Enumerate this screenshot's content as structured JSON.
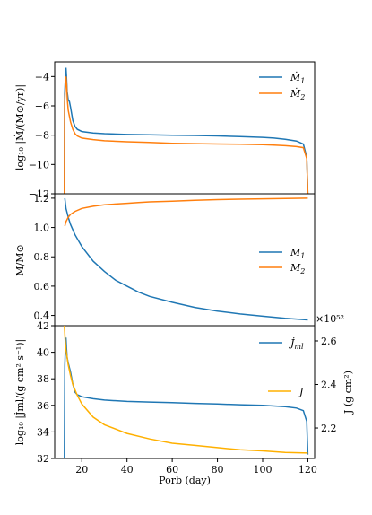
{
  "chart_data": [
    {
      "type": "line",
      "panel": "top",
      "ylabel": "log₁₀ |Ṁ/(M⊙/yr)|",
      "ylim": [
        -12,
        -3
      ],
      "yticks": [
        -4,
        -6,
        -8,
        -10,
        -12
      ],
      "ytick_labels": [
        "−4",
        "−6",
        "−8",
        "−10",
        "−12"
      ],
      "legend": "upper right",
      "series": [
        {
          "name": "Ṁ₁",
          "color": "#1f77b4",
          "x": [
            12.3,
            12.4,
            12.8,
            13.0,
            13.2,
            13.5,
            14,
            14.5,
            15,
            16,
            17,
            18,
            20,
            25,
            30,
            40,
            50,
            60,
            70,
            80,
            90,
            100,
            105,
            110,
            115,
            118,
            119.5,
            120
          ],
          "y": [
            -12,
            -5.2,
            -3.9,
            -3.4,
            -3.9,
            -5.0,
            -5.6,
            -5.7,
            -6.1,
            -7.0,
            -7.4,
            -7.6,
            -7.75,
            -7.85,
            -7.9,
            -7.95,
            -7.98,
            -8.0,
            -8.02,
            -8.05,
            -8.1,
            -8.15,
            -8.2,
            -8.28,
            -8.4,
            -8.6,
            -9.5,
            -12
          ]
        },
        {
          "name": "Ṁ₂",
          "color": "#ff7f0e",
          "x": [
            12.3,
            12.4,
            12.8,
            13.0,
            13.3,
            13.6,
            14,
            15,
            16,
            17,
            18,
            20,
            25,
            30,
            40,
            50,
            60,
            70,
            80,
            90,
            100,
            105,
            110,
            115,
            118,
            119.5,
            120
          ],
          "y": [
            -12,
            -5.8,
            -4.5,
            -4.0,
            -4.6,
            -5.6,
            -6.3,
            -7.1,
            -7.6,
            -7.9,
            -8.05,
            -8.2,
            -8.3,
            -8.38,
            -8.45,
            -8.5,
            -8.55,
            -8.58,
            -8.6,
            -8.62,
            -8.65,
            -8.68,
            -8.72,
            -8.78,
            -8.85,
            -9.6,
            -12
          ]
        }
      ]
    },
    {
      "type": "line",
      "panel": "middle",
      "ylabel": "M/M⊙",
      "ylim": [
        0.33,
        1.23
      ],
      "yticks": [
        1.2,
        1.0,
        0.8,
        0.6,
        0.4
      ],
      "ytick_labels": [
        "1.2",
        "1.0",
        "0.8",
        "0.6",
        "0.4"
      ],
      "legend": "center right",
      "series": [
        {
          "name": "M₁",
          "color": "#1f77b4",
          "x": [
            12.5,
            13,
            14,
            15,
            17,
            20,
            25,
            30,
            35,
            40,
            45,
            50,
            60,
            70,
            80,
            90,
            100,
            110,
            120
          ],
          "y": [
            1.2,
            1.13,
            1.07,
            1.02,
            0.95,
            0.87,
            0.77,
            0.7,
            0.64,
            0.6,
            0.56,
            0.53,
            0.49,
            0.455,
            0.43,
            0.41,
            0.395,
            0.38,
            0.37
          ]
        },
        {
          "name": "M₂",
          "color": "#ff7f0e",
          "x": [
            12.5,
            13,
            14,
            15,
            17,
            20,
            25,
            30,
            35,
            40,
            45,
            50,
            60,
            70,
            80,
            90,
            100,
            110,
            120
          ],
          "y": [
            1.01,
            1.04,
            1.07,
            1.09,
            1.11,
            1.13,
            1.145,
            1.155,
            1.16,
            1.165,
            1.17,
            1.175,
            1.18,
            1.185,
            1.19,
            1.193,
            1.196,
            1.198,
            1.2
          ]
        }
      ]
    },
    {
      "type": "line",
      "panel": "bottom",
      "xlabel": "P_orb (day)",
      "xlim": [
        8,
        123
      ],
      "xticks": [
        20,
        40,
        60,
        80,
        100,
        120
      ],
      "ylabel": "log₁₀ |J̇_ml/(g cm² s⁻¹)|",
      "ylim": [
        32,
        42
      ],
      "yticks": [
        42,
        40,
        38,
        36,
        34,
        32
      ],
      "y2label": "J (g cm²)",
      "y2_offset": "×10⁵²",
      "y2lim": [
        2.06,
        2.67
      ],
      "y2ticks": [
        2.6,
        2.4,
        2.2
      ],
      "legend": "right",
      "series": [
        {
          "name": "J̇_ml",
          "color": "#1f77b4",
          "axis": "left",
          "x": [
            12.3,
            12.5,
            12.8,
            13.0,
            13.2,
            13.5,
            14,
            15,
            16,
            17,
            18,
            20,
            25,
            30,
            40,
            50,
            60,
            70,
            80,
            90,
            100,
            105,
            110,
            115,
            118,
            119.5,
            120
          ],
          "y": [
            32,
            39.0,
            40.6,
            41.1,
            40.4,
            39.6,
            39.2,
            38.5,
            37.6,
            37.0,
            36.8,
            36.65,
            36.5,
            36.4,
            36.3,
            36.25,
            36.2,
            36.15,
            36.1,
            36.05,
            36.0,
            35.95,
            35.9,
            35.8,
            35.6,
            34.8,
            32.3
          ]
        },
        {
          "name": "J",
          "color": "#ffb000",
          "axis": "right",
          "x": [
            12.3,
            12.6,
            13,
            14,
            15,
            16,
            18,
            20,
            25,
            30,
            40,
            50,
            60,
            70,
            80,
            90,
            100,
            110,
            120
          ],
          "y": [
            2.67,
            2.61,
            2.56,
            2.49,
            2.44,
            2.4,
            2.35,
            2.31,
            2.25,
            2.215,
            2.175,
            2.15,
            2.13,
            2.12,
            2.11,
            2.1,
            2.095,
            2.088,
            2.085
          ]
        }
      ]
    }
  ],
  "labels": {
    "top_ylabel": "log₁₀ |Ṁ/(M⊙/yr)|",
    "mid_ylabel": "M/M⊙",
    "bot_ylabel": "log₁₀ |J̇ml/(g cm² s⁻¹)|",
    "bot_y2label": "J (g cm²)",
    "offset": "×10⁵²",
    "xlabel": "Porb (day)"
  }
}
